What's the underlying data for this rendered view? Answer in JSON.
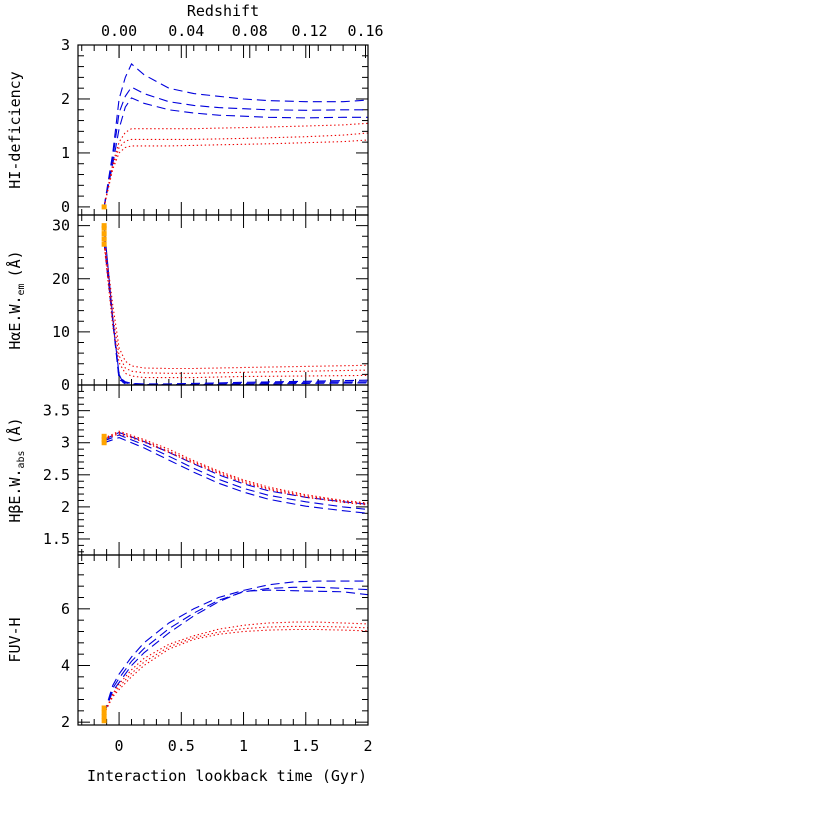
{
  "chart_data": {
    "type": "line",
    "top_axis": {
      "label": "Redshift",
      "ticks": [
        {
          "label": "0.00",
          "t": 0.0
        },
        {
          "label": "0.04",
          "t": 0.54
        },
        {
          "label": "0.08",
          "t": 1.05
        },
        {
          "label": "0.12",
          "t": 1.53
        },
        {
          "label": "0.16",
          "t": 1.98
        }
      ]
    },
    "xlabel": "Interaction lookback time (Gyr)",
    "xlim": [
      -0.33,
      2.0
    ],
    "x_ticks": [
      {
        "label": "0",
        "v": 0
      },
      {
        "label": "0.5",
        "v": 0.5
      },
      {
        "label": "1",
        "v": 1
      },
      {
        "label": "1.5",
        "v": 1.5
      },
      {
        "label": "2",
        "v": 2
      }
    ],
    "colors": {
      "dashed": "#0000dd",
      "dotted": "#ee0000",
      "observed": "#ffa500"
    },
    "panels": [
      {
        "ylabel": "HI-deficiency",
        "ylim": [
          -0.15,
          3.0
        ],
        "y_ticks": [
          {
            "label": "0",
            "v": 0
          },
          {
            "label": "1",
            "v": 1
          },
          {
            "label": "2",
            "v": 2
          },
          {
            "label": "3",
            "v": 3
          }
        ],
        "observed": {
          "x": -0.12,
          "y": [
            0.0
          ]
        },
        "series": [
          {
            "style": "dashed",
            "x": [
              -0.12,
              -0.05,
              0.0,
              0.05,
              0.1,
              0.2,
              0.4,
              0.6,
              0.8,
              1.0,
              1.2,
              1.5,
              1.8,
              2.0
            ],
            "y": [
              0.0,
              1.0,
              2.0,
              2.4,
              2.65,
              2.45,
              2.2,
              2.1,
              2.05,
              2.0,
              1.97,
              1.95,
              1.95,
              1.98
            ]
          },
          {
            "style": "dashed",
            "x": [
              -0.12,
              -0.05,
              0.0,
              0.05,
              0.1,
              0.2,
              0.4,
              0.6,
              0.8,
              1.0,
              1.2,
              1.5,
              1.8,
              2.0
            ],
            "y": [
              0.0,
              0.9,
              1.75,
              2.05,
              2.22,
              2.1,
              1.95,
              1.88,
              1.84,
              1.82,
              1.8,
              1.79,
              1.8,
              1.8
            ]
          },
          {
            "style": "dashed",
            "x": [
              -0.12,
              -0.05,
              0.0,
              0.05,
              0.1,
              0.2,
              0.4,
              0.6,
              0.8,
              1.0,
              1.2,
              1.5,
              1.8,
              2.0
            ],
            "y": [
              0.0,
              0.8,
              1.45,
              1.85,
              2.02,
              1.92,
              1.8,
              1.74,
              1.7,
              1.68,
              1.66,
              1.65,
              1.66,
              1.66
            ]
          },
          {
            "style": "dotted",
            "x": [
              -0.12,
              -0.05,
              0.0,
              0.05,
              0.1,
              0.2,
              0.4,
              0.6,
              0.8,
              1.0,
              1.2,
              1.5,
              1.8,
              2.0
            ],
            "y": [
              0.0,
              0.8,
              1.2,
              1.38,
              1.45,
              1.45,
              1.45,
              1.45,
              1.46,
              1.47,
              1.48,
              1.5,
              1.52,
              1.55
            ]
          },
          {
            "style": "dotted",
            "x": [
              -0.12,
              -0.05,
              0.0,
              0.05,
              0.1,
              0.2,
              0.4,
              0.6,
              0.8,
              1.0,
              1.2,
              1.5,
              1.8,
              2.0
            ],
            "y": [
              0.0,
              0.75,
              1.1,
              1.22,
              1.25,
              1.25,
              1.25,
              1.25,
              1.26,
              1.27,
              1.28,
              1.3,
              1.33,
              1.37
            ]
          },
          {
            "style": "dotted",
            "x": [
              -0.12,
              -0.05,
              0.0,
              0.05,
              0.1,
              0.2,
              0.4,
              0.6,
              0.8,
              1.0,
              1.2,
              1.5,
              1.8,
              2.0
            ],
            "y": [
              0.0,
              0.7,
              1.0,
              1.1,
              1.13,
              1.13,
              1.13,
              1.14,
              1.15,
              1.16,
              1.17,
              1.19,
              1.21,
              1.24
            ]
          }
        ]
      },
      {
        "ylabel": "HαE.W.",
        "ylabel_sub": "em",
        "ylabel_unit": "(Å)",
        "ylim": [
          0,
          32
        ],
        "y_ticks": [
          {
            "label": "0",
            "v": 0
          },
          {
            "label": "10",
            "v": 10
          },
          {
            "label": "20",
            "v": 20
          },
          {
            "label": "30",
            "v": 30
          }
        ],
        "observed": {
          "x": -0.12,
          "y": [
            26.5,
            27.5,
            28.5,
            29.5,
            30.0
          ]
        },
        "series": [
          {
            "style": "solid",
            "x": [
              -0.12,
              -0.08,
              -0.04,
              0.0,
              0.03,
              0.05
            ],
            "y": [
              30.0,
              20.0,
              10.0,
              2.0,
              0.5,
              0.2
            ]
          },
          {
            "style": "dashed",
            "x": [
              -0.12,
              0.0,
              0.05,
              0.1,
              0.2,
              0.4,
              0.6,
              0.8,
              1.0,
              1.5,
              2.0
            ],
            "y": [
              27.0,
              1.5,
              0.6,
              0.3,
              0.2,
              0.2,
              0.3,
              0.4,
              0.5,
              0.7,
              0.9
            ]
          },
          {
            "style": "dashed",
            "x": [
              -0.12,
              0.0,
              0.05,
              0.1,
              0.2,
              0.4,
              0.6,
              0.8,
              1.0,
              1.5,
              2.0
            ],
            "y": [
              27.0,
              1.2,
              0.5,
              0.3,
              0.1,
              0.1,
              0.1,
              0.2,
              0.3,
              0.5,
              0.6
            ]
          },
          {
            "style": "dashed",
            "x": [
              -0.12,
              0.0,
              0.05,
              0.1,
              0.2,
              0.4,
              0.6,
              0.8,
              1.0,
              1.5,
              2.0
            ],
            "y": [
              27.0,
              1.0,
              0.4,
              0.2,
              0.1,
              0.0,
              0.0,
              0.1,
              0.1,
              0.3,
              0.4
            ]
          },
          {
            "style": "dotted",
            "x": [
              -0.12,
              -0.05,
              0.0,
              0.05,
              0.1,
              0.2,
              0.4,
              0.6,
              0.8,
              1.0,
              1.5,
              2.0
            ],
            "y": [
              28.0,
              15.0,
              7.0,
              4.5,
              3.6,
              3.2,
              3.1,
              3.1,
              3.2,
              3.3,
              3.5,
              3.7
            ]
          },
          {
            "style": "dotted",
            "x": [
              -0.12,
              -0.05,
              0.0,
              0.05,
              0.1,
              0.2,
              0.4,
              0.6,
              0.8,
              1.0,
              1.5,
              2.0
            ],
            "y": [
              27.0,
              13.0,
              5.5,
              3.2,
              2.6,
              2.3,
              2.2,
              2.2,
              2.3,
              2.4,
              2.6,
              2.8
            ]
          },
          {
            "style": "dotted",
            "x": [
              -0.12,
              -0.05,
              0.0,
              0.05,
              0.1,
              0.2,
              0.4,
              0.6,
              0.8,
              1.0,
              1.5,
              2.0
            ],
            "y": [
              26.5,
              11.0,
              4.2,
              2.2,
              1.7,
              1.4,
              1.4,
              1.4,
              1.5,
              1.6,
              1.7,
              1.8
            ]
          }
        ]
      },
      {
        "ylabel": "HβE.W.",
        "ylabel_sub": "abs",
        "ylabel_unit": "(Å)",
        "ylim": [
          1.25,
          3.9
        ],
        "y_ticks": [
          {
            "label": "1.5",
            "v": 1.5
          },
          {
            "label": "2",
            "v": 2
          },
          {
            "label": "2.5",
            "v": 2.5
          },
          {
            "label": "3",
            "v": 3
          },
          {
            "label": "3.5",
            "v": 3.5
          }
        ],
        "observed": {
          "x": -0.12,
          "y": [
            3.0,
            3.05,
            3.1
          ]
        },
        "series": [
          {
            "style": "dashed",
            "x": [
              -0.12,
              0.0,
              0.2,
              0.4,
              0.6,
              0.8,
              1.0,
              1.2,
              1.5,
              1.8,
              2.0
            ],
            "y": [
              3.05,
              3.16,
              3.02,
              2.85,
              2.67,
              2.5,
              2.36,
              2.25,
              2.15,
              2.08,
              2.04
            ]
          },
          {
            "style": "dashed",
            "x": [
              -0.12,
              0.0,
              0.2,
              0.4,
              0.6,
              0.8,
              1.0,
              1.2,
              1.5,
              1.8,
              2.0
            ],
            "y": [
              3.03,
              3.12,
              2.97,
              2.79,
              2.6,
              2.43,
              2.29,
              2.18,
              2.08,
              2.0,
              1.96
            ]
          },
          {
            "style": "dashed",
            "x": [
              -0.12,
              0.0,
              0.2,
              0.4,
              0.6,
              0.8,
              1.0,
              1.2,
              1.5,
              1.8,
              2.0
            ],
            "y": [
              3.0,
              3.08,
              2.92,
              2.73,
              2.54,
              2.37,
              2.23,
              2.12,
              2.01,
              1.94,
              1.9
            ]
          },
          {
            "style": "dotted",
            "x": [
              -0.12,
              0.0,
              0.2,
              0.4,
              0.6,
              0.8,
              1.0,
              1.2,
              1.5,
              1.8,
              2.0
            ],
            "y": [
              3.07,
              3.18,
              3.05,
              2.9,
              2.72,
              2.56,
              2.42,
              2.31,
              2.19,
              2.1,
              2.06
            ]
          },
          {
            "style": "dotted",
            "x": [
              -0.12,
              0.0,
              0.2,
              0.4,
              0.6,
              0.8,
              1.0,
              1.2,
              1.5,
              1.8,
              2.0
            ],
            "y": [
              3.06,
              3.16,
              3.03,
              2.87,
              2.7,
              2.54,
              2.4,
              2.29,
              2.17,
              2.09,
              2.05
            ]
          },
          {
            "style": "dotted",
            "x": [
              -0.12,
              0.0,
              0.2,
              0.4,
              0.6,
              0.8,
              1.0,
              1.2,
              1.5,
              1.8,
              2.0
            ],
            "y": [
              3.05,
              3.14,
              3.01,
              2.85,
              2.68,
              2.52,
              2.38,
              2.27,
              2.15,
              2.07,
              2.03
            ]
          }
        ]
      },
      {
        "ylabel": "FUV-H",
        "ylim": [
          1.9,
          7.9
        ],
        "y_ticks": [
          {
            "label": "2",
            "v": 2
          },
          {
            "label": "4",
            "v": 4
          },
          {
            "label": "6",
            "v": 6
          }
        ],
        "observed": {
          "x": -0.12,
          "y": [
            2.05,
            2.2,
            2.35,
            2.5
          ]
        },
        "series": [
          {
            "style": "dashed",
            "x": [
              -0.12,
              -0.05,
              0.0,
              0.1,
              0.2,
              0.4,
              0.6,
              0.8,
              1.0,
              1.2,
              1.4,
              1.6,
              1.8,
              2.0
            ],
            "y": [
              2.3,
              3.3,
              3.7,
              4.3,
              4.8,
              5.5,
              6.0,
              6.4,
              6.65,
              6.85,
              6.95,
              6.98,
              6.98,
              6.98
            ]
          },
          {
            "style": "dashed",
            "x": [
              -0.12,
              -0.05,
              0.0,
              0.1,
              0.2,
              0.4,
              0.6,
              0.8,
              1.0,
              1.2,
              1.4,
              1.6,
              1.8,
              2.0
            ],
            "y": [
              2.3,
              3.2,
              3.55,
              4.15,
              4.6,
              5.3,
              5.85,
              6.3,
              6.6,
              6.72,
              6.76,
              6.76,
              6.72,
              6.68
            ]
          },
          {
            "style": "dashed",
            "x": [
              -0.12,
              -0.05,
              0.0,
              0.1,
              0.2,
              0.4,
              0.6,
              0.8,
              1.0,
              1.2,
              1.4,
              1.6,
              1.8,
              2.0
            ],
            "y": [
              2.3,
              3.1,
              3.4,
              4.0,
              4.45,
              5.15,
              5.75,
              6.25,
              6.62,
              6.66,
              6.64,
              6.62,
              6.6,
              6.5
            ]
          },
          {
            "style": "dotted",
            "x": [
              -0.12,
              -0.05,
              0.0,
              0.1,
              0.2,
              0.4,
              0.6,
              0.8,
              1.0,
              1.2,
              1.4,
              1.6,
              1.8,
              2.0
            ],
            "y": [
              2.3,
              3.0,
              3.35,
              3.85,
              4.25,
              4.75,
              5.05,
              5.28,
              5.42,
              5.5,
              5.53,
              5.53,
              5.5,
              5.47
            ]
          },
          {
            "style": "dotted",
            "x": [
              -0.12,
              -0.05,
              0.0,
              0.1,
              0.2,
              0.4,
              0.6,
              0.8,
              1.0,
              1.2,
              1.4,
              1.6,
              1.8,
              2.0
            ],
            "y": [
              2.3,
              2.95,
              3.25,
              3.72,
              4.12,
              4.66,
              4.98,
              5.18,
              5.3,
              5.36,
              5.38,
              5.38,
              5.36,
              5.33
            ]
          },
          {
            "style": "dotted",
            "x": [
              -0.12,
              -0.05,
              0.0,
              0.1,
              0.2,
              0.4,
              0.6,
              0.8,
              1.0,
              1.2,
              1.4,
              1.6,
              1.8,
              2.0
            ],
            "y": [
              2.3,
              2.9,
              3.15,
              3.6,
              4.0,
              4.58,
              4.92,
              5.1,
              5.2,
              5.25,
              5.27,
              5.27,
              5.25,
              5.22
            ]
          }
        ]
      }
    ]
  }
}
